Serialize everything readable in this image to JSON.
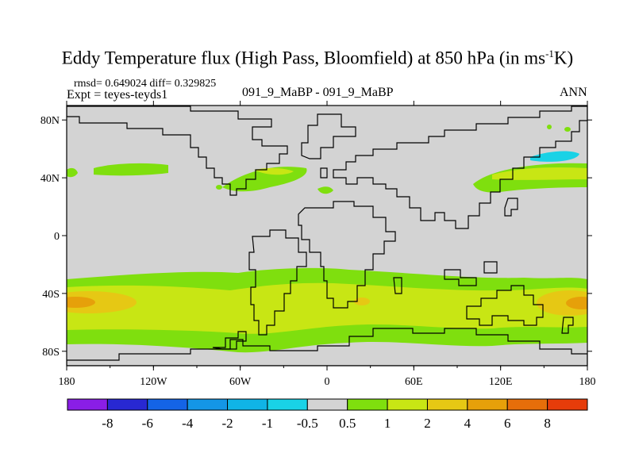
{
  "title": {
    "main": "Eddy Temperature flux (High Pass, Bloomfield) at 850 hPa (in ms",
    "sup": "-1",
    "tail": "K)"
  },
  "stats": "rmsd= 0.649024 diff= 0.329825",
  "expt": "Expt = teyes-teyds1",
  "case": "091_9_MaBP - 091_9_MaBP",
  "season": "ANN",
  "map": {
    "lon_labels": [
      "180",
      "120W",
      "60W",
      "0",
      "60E",
      "120E",
      "180"
    ],
    "lat_labels": [
      "80N",
      "40N",
      "0",
      "40S",
      "80S"
    ],
    "lat_label_values": [
      80,
      40,
      0,
      -40,
      -80
    ]
  },
  "colorbar": {
    "colors": [
      "#8a1ee6",
      "#2828d2",
      "#1464e6",
      "#1496e6",
      "#10b4e6",
      "#19d2e6",
      "#d3d3d3",
      "#7fdf0e",
      "#c8e614",
      "#e6c814",
      "#e6a00a",
      "#e66e0a",
      "#e63c0a"
    ],
    "labels": [
      "-8",
      "-6",
      "-4",
      "-2",
      "-1",
      "-0.5",
      "0.5",
      "1",
      "2",
      "4",
      "6",
      "8"
    ]
  }
}
